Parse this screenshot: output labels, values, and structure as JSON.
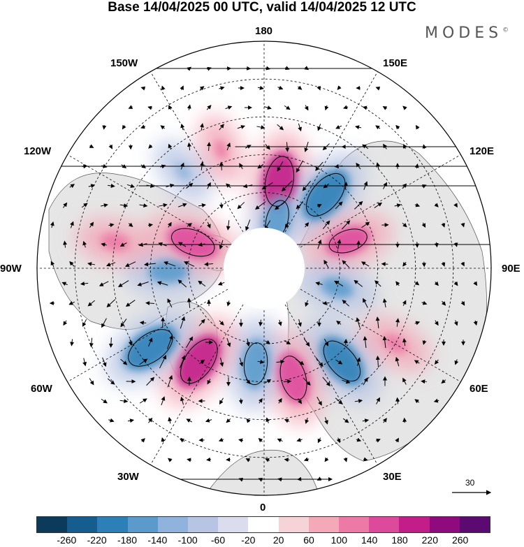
{
  "title": "Base 14/04/2025 00 UTC, valid 14/04/2025 12 UTC",
  "brand": {
    "name": "MODES",
    "mark": "©"
  },
  "longitude_labels": {
    "top": "180",
    "bottom": "0",
    "left": "90W",
    "right": "90E",
    "upper_left": "150W",
    "upper_right": "150E",
    "mid_upper_left": "120W",
    "mid_upper_right": "120E",
    "mid_lower_left": "60W",
    "mid_lower_right": "60E",
    "lower_left": "30W",
    "lower_right": "30E"
  },
  "reference_vector": {
    "value": "30"
  },
  "colorbar": {
    "colors": [
      "#0b3a5b",
      "#155d8f",
      "#2d7fb8",
      "#5b9bcc",
      "#8fb3dc",
      "#b8c4e4",
      "#dcdcef",
      "#ffffff",
      "#f6d3d6",
      "#f3a9b8",
      "#ec79a6",
      "#de4a9b",
      "#c21d88",
      "#8e0a7d",
      "#5a0a70"
    ],
    "ticks": [
      "-260",
      "-220",
      "-180",
      "-140",
      "-100",
      "-60",
      "-20",
      "20",
      "60",
      "100",
      "140",
      "180",
      "220",
      "260"
    ]
  },
  "anomaly_centers": [
    {
      "lon": 170,
      "lat": 55,
      "sign": "positive",
      "strength": 0.9
    },
    {
      "lon": 140,
      "lat": 52,
      "sign": "negative",
      "strength": 0.9
    },
    {
      "lon": 108,
      "lat": 55,
      "sign": "positive",
      "strength": 0.7
    },
    {
      "lon": 75,
      "lat": 60,
      "sign": "negative",
      "strength": 0.5
    },
    {
      "lon": 40,
      "lat": 42,
      "sign": "negative",
      "strength": 0.85
    },
    {
      "lon": 15,
      "lat": 45,
      "sign": "positive",
      "strength": 0.8
    },
    {
      "lon": -5,
      "lat": 52,
      "sign": "negative",
      "strength": 0.75
    },
    {
      "lon": -35,
      "lat": 45,
      "sign": "positive",
      "strength": 0.9
    },
    {
      "lon": -55,
      "lat": 35,
      "sign": "negative",
      "strength": 0.9
    },
    {
      "lon": -88,
      "lat": 52,
      "sign": "negative",
      "strength": 0.6
    },
    {
      "lon": -110,
      "lat": 60,
      "sign": "positive",
      "strength": 0.8
    },
    {
      "lon": -100,
      "lat": 30,
      "sign": "positive",
      "strength": 0.45
    },
    {
      "lon": -160,
      "lat": 40,
      "sign": "positive",
      "strength": 0.3
    },
    {
      "lon": -140,
      "lat": 40,
      "sign": "negative",
      "strength": 0.3
    },
    {
      "lon": 165,
      "lat": 70,
      "sign": "negative",
      "strength": 0.7
    },
    {
      "lon": 60,
      "lat": 30,
      "sign": "positive",
      "strength": 0.4
    }
  ]
}
